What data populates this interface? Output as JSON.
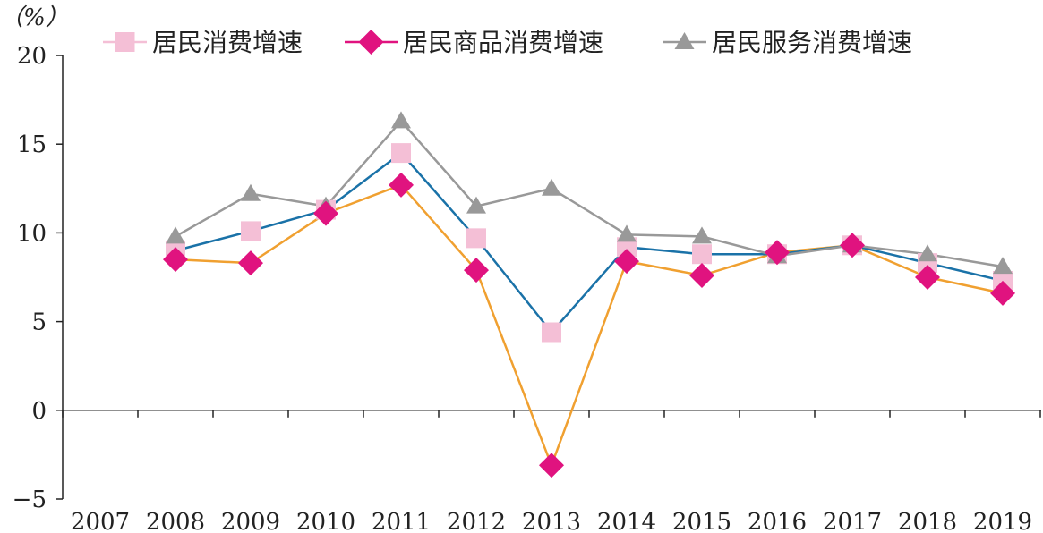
{
  "chart_data": {
    "type": "line",
    "ylabel": "（%）",
    "ylim": [
      -5,
      20
    ],
    "yticks": [
      -5,
      0,
      5,
      10,
      15,
      20
    ],
    "categories": [
      "2007",
      "2008",
      "2009",
      "2010",
      "2011",
      "2012",
      "2013",
      "2014",
      "2015",
      "2016",
      "2017",
      "2018",
      "2019"
    ],
    "legend_position": "top",
    "grid": false,
    "series": [
      {
        "name": "居民消费增速",
        "marker": "square",
        "marker_color": "#f4bfd6",
        "line_color": "#1a72a8",
        "values": [
          null,
          9.0,
          10.1,
          11.3,
          14.5,
          9.7,
          4.4,
          9.2,
          8.8,
          8.8,
          9.3,
          8.3,
          7.3
        ]
      },
      {
        "name": "居民商品消费增速",
        "marker": "diamond",
        "marker_color": "#e0137f",
        "line_color": "#f0a030",
        "values": [
          null,
          8.5,
          8.3,
          11.1,
          12.7,
          7.9,
          -3.1,
          8.4,
          7.6,
          8.9,
          9.3,
          7.5,
          6.6
        ]
      },
      {
        "name": "居民服务消费增速",
        "marker": "triangle",
        "marker_color": "#999999",
        "line_color": "#999999",
        "values": [
          null,
          9.8,
          12.2,
          11.5,
          16.3,
          11.5,
          12.5,
          9.9,
          9.8,
          8.7,
          9.3,
          8.8,
          8.1
        ]
      }
    ]
  }
}
